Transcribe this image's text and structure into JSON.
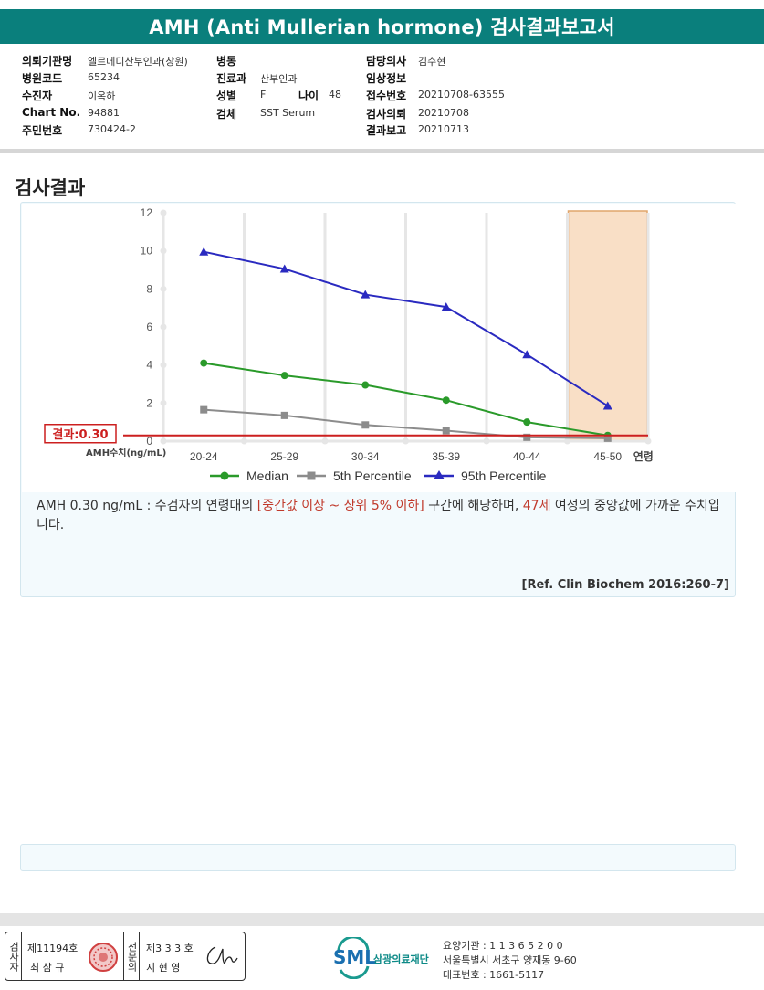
{
  "report_title": "AMH (Anti Mullerian hormone) 검사결과보고서",
  "patient_info": {
    "institution_label": "의뢰기관명",
    "institution": "엘르메디산부인과(창원)",
    "hospital_code_label": "병원코드",
    "hospital_code": "65234",
    "patient_label": "수진자",
    "patient": "이옥하",
    "chart_no_label": "Chart No.",
    "chart_no": "94881",
    "resident_no_label": "주민번호",
    "resident_no": "730424-2",
    "ward_label": "병동",
    "ward": "",
    "department_label": "진료과",
    "department": "산부인과",
    "sex_label": "성별",
    "sex": "F",
    "age_label": "나이",
    "age": "48",
    "specimen_label": "검체",
    "specimen": "SST Serum",
    "doctor_label": "담당의사",
    "doctor": "김수현",
    "clinical_info_label": "임상정보",
    "clinical_info": "",
    "receipt_no_label": "접수번호",
    "receipt_no": "20210708-63555",
    "request_date_label": "검사의뢰",
    "request_date": "20210708",
    "report_date_label": "결과보고",
    "report_date": "20210713"
  },
  "section_title": "검사결과",
  "chart_data": {
    "type": "line",
    "categories": [
      "20-24",
      "25-29",
      "30-34",
      "35-39",
      "40-44",
      "45-50"
    ],
    "x_axis_suffix": "연령",
    "ylabel": "AMH수치(ng/mL)",
    "ylim": [
      0,
      12
    ],
    "yticks": [
      0,
      2,
      4,
      6,
      8,
      10,
      12
    ],
    "series": [
      {
        "name": "Median",
        "color": "#2a9a2a",
        "marker": "circle",
        "values": [
          4.1,
          3.45,
          2.95,
          2.15,
          1.0,
          0.3
        ]
      },
      {
        "name": "5th Percentile",
        "color": "#8c8c8c",
        "marker": "square",
        "values": [
          1.65,
          1.35,
          0.85,
          0.55,
          0.2,
          0.15
        ]
      },
      {
        "name": "95th Percentile",
        "color": "#2a2ac0",
        "marker": "triangle",
        "values": [
          9.95,
          9.05,
          7.7,
          7.05,
          4.55,
          1.85
        ]
      }
    ],
    "result_line": {
      "label": "결과:0.30",
      "value": 0.3,
      "color": "#cc1f1f"
    },
    "highlight_category": "45-50",
    "highlight_color": "#f9dfc6",
    "legend_position": "bottom",
    "grid": "vertical"
  },
  "description": {
    "part1": "AMH  0.30 ng/mL : 수검자의 연령대의 ",
    "highlight1": "[중간값 이상 ~ 상위 5% 이하]",
    "part2": " 구간에 해당하며, ",
    "highlight2": "47세",
    "part3": " 여성의 중앙값에 가까운 수치입니다."
  },
  "reference": "[Ref. Clin Biochem 2016:260-7]",
  "signatures": {
    "tester_label": "검사자",
    "tester_license": "제11194호",
    "tester_name": "최 삼 규",
    "specialist_label": "전문의",
    "specialist_license": "제3 3 3 호",
    "specialist_name": "지 현 영"
  },
  "organization": {
    "logo_text": "SML",
    "name": "삼광의료재단",
    "care_code": "요양기관 : 1 1 3 6 5 2 0 0",
    "address": "서울특별시 서초구 양재동 9-60",
    "phone": "대표번호 : 1661-5117"
  }
}
